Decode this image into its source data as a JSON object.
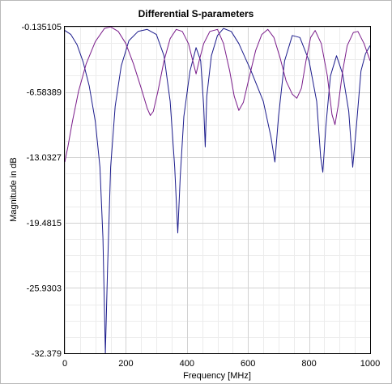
{
  "colors": {
    "series_blue": "#1c1c8c",
    "series_purple": "#7a1c8a",
    "grid_major": "#d2d2d2",
    "grid_minor": "#ececec"
  },
  "chart_data": {
    "type": "line",
    "title": "Differential S-parameters",
    "xlabel": "Frequency [MHz]",
    "ylabel": "Magnitude in dB",
    "xlim": [
      0,
      1000
    ],
    "ylim": [
      -32.379,
      -0.135105
    ],
    "x_ticks": [
      0,
      200,
      400,
      600,
      800,
      1000
    ],
    "x_tick_labels": [
      "0",
      "200",
      "400",
      "600",
      "800",
      "1000"
    ],
    "y_ticks": [
      -0.135105,
      -6.58389,
      -13.0327,
      -19.4815,
      -25.9303,
      -32.379
    ],
    "y_tick_labels": [
      "-0.135105",
      "-6.58389",
      "-13.0327",
      "-19.4815",
      "-25.9303",
      "-32.379"
    ],
    "grid": true,
    "minor_grid": true,
    "legend": "none",
    "series": [
      {
        "color": "#1c1c8c",
        "points": [
          [
            0,
            -0.5
          ],
          [
            20,
            -0.9
          ],
          [
            40,
            -1.9
          ],
          [
            60,
            -3.6
          ],
          [
            80,
            -6.0
          ],
          [
            100,
            -9.5
          ],
          [
            115,
            -14.0
          ],
          [
            125,
            -21.0
          ],
          [
            133,
            -32.379
          ],
          [
            140,
            -24.0
          ],
          [
            150,
            -14.0
          ],
          [
            165,
            -8.0
          ],
          [
            185,
            -4.0
          ],
          [
            210,
            -1.5
          ],
          [
            240,
            -0.6
          ],
          [
            270,
            -0.4
          ],
          [
            300,
            -0.9
          ],
          [
            325,
            -3.0
          ],
          [
            345,
            -7.5
          ],
          [
            360,
            -14.0
          ],
          [
            370,
            -20.5
          ],
          [
            378,
            -15.0
          ],
          [
            390,
            -9.0
          ],
          [
            410,
            -4.5
          ],
          [
            430,
            -2.2
          ],
          [
            445,
            -3.5
          ],
          [
            455,
            -8.0
          ],
          [
            460,
            -12.0
          ],
          [
            465,
            -7.0
          ],
          [
            480,
            -3.0
          ],
          [
            500,
            -1.0
          ],
          [
            520,
            -0.3
          ],
          [
            545,
            -0.6
          ],
          [
            570,
            -1.8
          ],
          [
            610,
            -4.5
          ],
          [
            650,
            -7.5
          ],
          [
            675,
            -11.0
          ],
          [
            688,
            -13.5
          ],
          [
            700,
            -9.0
          ],
          [
            720,
            -3.5
          ],
          [
            745,
            -1.0
          ],
          [
            770,
            -1.2
          ],
          [
            800,
            -3.5
          ],
          [
            825,
            -7.5
          ],
          [
            838,
            -13.0
          ],
          [
            845,
            -14.5
          ],
          [
            855,
            -10.0
          ],
          [
            870,
            -5.0
          ],
          [
            890,
            -3.0
          ],
          [
            910,
            -4.8
          ],
          [
            930,
            -8.5
          ],
          [
            943,
            -14.0
          ],
          [
            955,
            -10.0
          ],
          [
            970,
            -4.5
          ],
          [
            985,
            -2.8
          ],
          [
            1000,
            -2.0
          ]
        ]
      },
      {
        "color": "#7a1c8a",
        "points": [
          [
            0,
            -13.5
          ],
          [
            10,
            -12.0
          ],
          [
            25,
            -9.5
          ],
          [
            45,
            -6.5
          ],
          [
            70,
            -3.8
          ],
          [
            100,
            -1.6
          ],
          [
            130,
            -0.3
          ],
          [
            150,
            -0.15
          ],
          [
            175,
            -0.6
          ],
          [
            200,
            -1.8
          ],
          [
            225,
            -3.8
          ],
          [
            250,
            -6.2
          ],
          [
            270,
            -8.2
          ],
          [
            280,
            -8.9
          ],
          [
            290,
            -8.5
          ],
          [
            305,
            -6.5
          ],
          [
            325,
            -3.5
          ],
          [
            345,
            -1.3
          ],
          [
            365,
            -0.4
          ],
          [
            385,
            -0.6
          ],
          [
            405,
            -1.8
          ],
          [
            420,
            -3.6
          ],
          [
            430,
            -4.8
          ],
          [
            440,
            -3.5
          ],
          [
            455,
            -1.8
          ],
          [
            475,
            -0.6
          ],
          [
            500,
            -0.4
          ],
          [
            520,
            -1.8
          ],
          [
            540,
            -4.5
          ],
          [
            555,
            -7.0
          ],
          [
            570,
            -8.4
          ],
          [
            585,
            -7.6
          ],
          [
            605,
            -5.0
          ],
          [
            625,
            -2.5
          ],
          [
            645,
            -0.9
          ],
          [
            665,
            -0.4
          ],
          [
            685,
            -1.2
          ],
          [
            705,
            -3.2
          ],
          [
            725,
            -5.5
          ],
          [
            745,
            -6.8
          ],
          [
            760,
            -7.2
          ],
          [
            775,
            -6.2
          ],
          [
            790,
            -3.5
          ],
          [
            805,
            -1.2
          ],
          [
            820,
            -0.5
          ],
          [
            840,
            -1.8
          ],
          [
            860,
            -5.0
          ],
          [
            875,
            -8.8
          ],
          [
            885,
            -9.8
          ],
          [
            895,
            -8.0
          ],
          [
            910,
            -4.5
          ],
          [
            925,
            -2.0
          ],
          [
            945,
            -0.7
          ],
          [
            960,
            -0.6
          ],
          [
            980,
            -1.8
          ],
          [
            1000,
            -3.5
          ]
        ]
      }
    ]
  }
}
